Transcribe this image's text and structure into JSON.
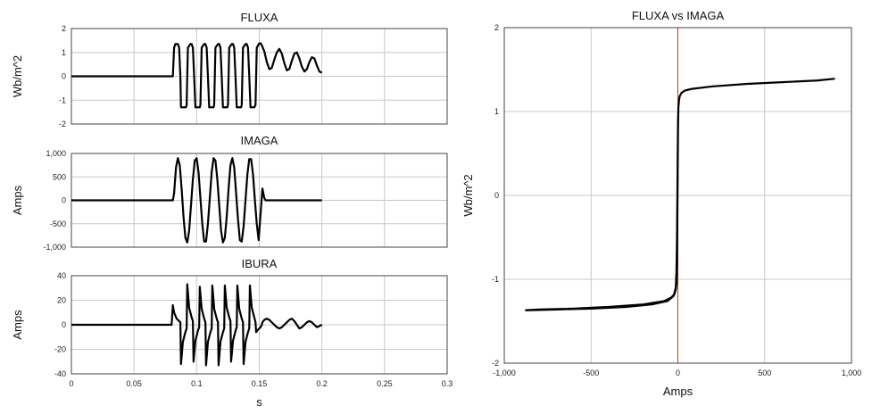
{
  "chart_data": [
    {
      "id": "fluxa",
      "type": "line",
      "title": "FLUXA",
      "xlabel": "",
      "ylabel": "Wb/m^2",
      "xlim": [
        0,
        0.3
      ],
      "ylim": [
        -2,
        2
      ],
      "xticks": [
        "0",
        "0.05",
        "0.1",
        "0.15",
        "0.2",
        "0.25",
        "0.3"
      ],
      "yticks": [
        "2",
        "1",
        "0",
        "-1",
        "-2"
      ],
      "grid": true,
      "series": [
        {
          "x": [
            0,
            0.081,
            0.082,
            0.083,
            0.085,
            0.086,
            0.087,
            0.0875,
            0.0915,
            0.092,
            0.093,
            0.095,
            0.096,
            0.097,
            0.098,
            0.099,
            0.1025,
            0.103,
            0.104,
            0.106,
            0.107,
            0.108,
            0.109,
            0.11,
            0.1135,
            0.114,
            0.115,
            0.117,
            0.118,
            0.119,
            0.12,
            0.121,
            0.1245,
            0.125,
            0.126,
            0.128,
            0.129,
            0.13,
            0.131,
            0.132,
            0.1355,
            0.136,
            0.137,
            0.139,
            0.14,
            0.141,
            0.142,
            0.143,
            0.146,
            0.147,
            0.148,
            0.15,
            0.151,
            0.152,
            0.154,
            0.156,
            0.158,
            0.16,
            0.162,
            0.164,
            0.166,
            0.168,
            0.17,
            0.172,
            0.174,
            0.176,
            0.178,
            0.18,
            0.182,
            0.184,
            0.186,
            0.188,
            0.19,
            0.192,
            0.194,
            0.196,
            0.198,
            0.2
          ],
          "y": [
            0,
            0,
            1.2,
            1.35,
            1.35,
            1.2,
            0,
            -1.3,
            -1.3,
            -1.2,
            1.2,
            1.35,
            1.35,
            1.2,
            0,
            -1.3,
            -1.3,
            -1.2,
            1.2,
            1.35,
            1.35,
            1.2,
            0,
            -1.3,
            -1.3,
            -1.2,
            1.2,
            1.35,
            1.35,
            1.2,
            0,
            -1.3,
            -1.3,
            -1.2,
            1.2,
            1.35,
            1.35,
            1.2,
            0,
            -1.3,
            -1.3,
            -1.2,
            1.2,
            1.35,
            1.35,
            1.2,
            0,
            -1.3,
            -1.3,
            -1.2,
            1.2,
            1.38,
            1.38,
            1.3,
            1.05,
            0.6,
            0.3,
            0.35,
            0.7,
            1.0,
            1.15,
            0.95,
            0.55,
            0.25,
            0.3,
            0.65,
            0.95,
            1.0,
            0.75,
            0.4,
            0.2,
            0.3,
            0.6,
            0.8,
            0.75,
            0.45,
            0.2,
            0.15
          ]
        }
      ]
    },
    {
      "id": "imaga",
      "type": "line",
      "title": "IMAGA",
      "xlabel": "",
      "ylabel": "Amps",
      "xlim": [
        0,
        0.3
      ],
      "ylim": [
        -1000,
        1000
      ],
      "xticks": [
        "0",
        "0.05",
        "0.1",
        "0.15",
        "0.2",
        "0.25",
        "0.3"
      ],
      "yticks": [
        "1,000",
        "500",
        "0",
        "-500",
        "-1,000"
      ],
      "grid": true,
      "series": [
        {
          "x": [
            0,
            0.081,
            0.082,
            0.0835,
            0.085,
            0.0865,
            0.088,
            0.0895,
            0.091,
            0.0925,
            0.094,
            0.0955,
            0.097,
            0.0985,
            0.1,
            0.1015,
            0.103,
            0.1045,
            0.106,
            0.1075,
            0.109,
            0.1105,
            0.112,
            0.1135,
            0.115,
            0.1165,
            0.118,
            0.1195,
            0.121,
            0.1225,
            0.124,
            0.1255,
            0.127,
            0.1285,
            0.13,
            0.1315,
            0.133,
            0.1345,
            0.136,
            0.1375,
            0.139,
            0.1405,
            0.142,
            0.1435,
            0.145,
            0.1465,
            0.148,
            0.1495,
            0.151,
            0.1525,
            0.154,
            0.155,
            0.2
          ],
          "y": [
            0,
            0,
            150,
            700,
            900,
            750,
            250,
            -350,
            -800,
            -900,
            -650,
            -100,
            450,
            850,
            900,
            600,
            50,
            -500,
            -880,
            -880,
            -500,
            50,
            600,
            900,
            850,
            450,
            -100,
            -650,
            -900,
            -800,
            -350,
            250,
            750,
            900,
            700,
            150,
            -400,
            -850,
            -880,
            -550,
            0,
            550,
            880,
            880,
            550,
            0,
            -500,
            -850,
            -300,
            250,
            50,
            0,
            0
          ]
        }
      ]
    },
    {
      "id": "ibura",
      "type": "line",
      "title": "IBURA",
      "xlabel": "s",
      "ylabel": "Amps",
      "xlim": [
        0,
        0.3
      ],
      "ylim": [
        -40,
        40
      ],
      "xticks": [
        "0",
        "0.05",
        "0.1",
        "0.15",
        "0.2",
        "0.25",
        "0.3"
      ],
      "yticks": [
        "40",
        "20",
        "0",
        "-20",
        "-40"
      ],
      "grid": true,
      "series": [
        {
          "x": [
            0,
            0.08,
            0.081,
            0.082,
            0.084,
            0.086,
            0.087,
            0.0875,
            0.089,
            0.091,
            0.092,
            0.0925,
            0.094,
            0.096,
            0.097,
            0.0975,
            0.099,
            0.101,
            0.102,
            0.1025,
            0.104,
            0.106,
            0.107,
            0.1075,
            0.109,
            0.111,
            0.112,
            0.1125,
            0.114,
            0.116,
            0.117,
            0.1175,
            0.119,
            0.121,
            0.122,
            0.1225,
            0.124,
            0.126,
            0.127,
            0.1275,
            0.129,
            0.131,
            0.132,
            0.1325,
            0.134,
            0.136,
            0.137,
            0.1375,
            0.139,
            0.141,
            0.142,
            0.1425,
            0.144,
            0.146,
            0.147,
            0.1475,
            0.149,
            0.151,
            0.152,
            0.1525,
            0.154,
            0.156,
            0.158,
            0.16,
            0.162,
            0.164,
            0.166,
            0.168,
            0.17,
            0.172,
            0.174,
            0.176,
            0.178,
            0.18,
            0.182,
            0.184,
            0.186,
            0.188,
            0.19,
            0.192,
            0.194,
            0.196,
            0.198,
            0.2
          ],
          "y": [
            0,
            0,
            16,
            10,
            5,
            3,
            2,
            -32,
            -14,
            -6,
            -3,
            33,
            14,
            6,
            3,
            -30,
            -13,
            -5,
            -2,
            31,
            13,
            5,
            2,
            -33,
            -14,
            -6,
            -3,
            32,
            13,
            5,
            2,
            -33,
            -14,
            -6,
            -3,
            32,
            14,
            6,
            3,
            -30,
            -13,
            -5,
            -2,
            32,
            13,
            5,
            2,
            -32,
            -14,
            -6,
            -3,
            32,
            14,
            6,
            2,
            -6,
            -4,
            -2,
            0,
            2,
            4,
            5,
            4,
            2,
            0,
            -2,
            -3,
            -2,
            0,
            2,
            4,
            5,
            3,
            0,
            -3,
            -2,
            0,
            2,
            3,
            2,
            0,
            -2,
            -1,
            0
          ]
        }
      ]
    },
    {
      "id": "fluxa-vs-imaga",
      "type": "line",
      "title": "FLUXA vs IMAGA",
      "xlabel": "Amps",
      "ylabel": "Wb/m^2",
      "xlim": [
        -1000,
        1000
      ],
      "ylim": [
        -2,
        2
      ],
      "xticks": [
        "-1,000",
        "-500",
        "0",
        "500",
        "1,000"
      ],
      "yticks": [
        "2",
        "1",
        "0",
        "-1",
        "-2"
      ],
      "grid": true,
      "zero_marker_color": "#c0392b",
      "series": [
        {
          "x": [
            -880,
            -700,
            -500,
            -300,
            -150,
            -60,
            -25,
            -12,
            -8,
            -5,
            -3,
            -1,
            1,
            3,
            6,
            10,
            20,
            40,
            80,
            200,
            400,
            600,
            800,
            900,
            800,
            600,
            400,
            200,
            80,
            40,
            20,
            10,
            6,
            3,
            1,
            -1,
            -3,
            -5,
            -8,
            -12,
            -20,
            -40,
            -80,
            -200,
            -400,
            -600,
            -800,
            -880
          ],
          "y": [
            -1.37,
            -1.36,
            -1.35,
            -1.33,
            -1.3,
            -1.26,
            -1.2,
            -1.1,
            -0.9,
            -0.5,
            0.0,
            0.5,
            0.9,
            1.05,
            1.12,
            1.18,
            1.22,
            1.25,
            1.27,
            1.3,
            1.33,
            1.35,
            1.37,
            1.39,
            1.37,
            1.35,
            1.33,
            1.3,
            1.27,
            1.25,
            1.22,
            1.18,
            1.12,
            1.05,
            0.8,
            0.3,
            -0.3,
            -0.8,
            -1.05,
            -1.12,
            -1.18,
            -1.22,
            -1.26,
            -1.3,
            -1.33,
            -1.35,
            -1.36,
            -1.37
          ]
        }
      ]
    }
  ]
}
